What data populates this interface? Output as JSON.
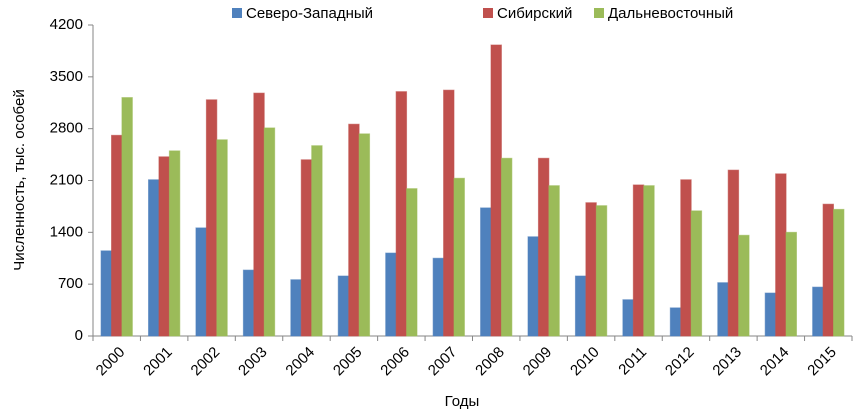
{
  "chart_data": {
    "type": "bar",
    "categories": [
      "2000",
      "2001",
      "2002",
      "2003",
      "2004",
      "2005",
      "2006",
      "2007",
      "2008",
      "2009",
      "2010",
      "2011",
      "2012",
      "2013",
      "2014",
      "2015"
    ],
    "series": [
      {
        "name": "Северо-Западный",
        "color": "#4f81bd",
        "values": [
          1150,
          2110,
          1460,
          890,
          760,
          810,
          1120,
          1050,
          1730,
          1340,
          810,
          490,
          380,
          720,
          580,
          660
        ]
      },
      {
        "name": "Сибирский",
        "color": "#c0504d",
        "values": [
          2710,
          2420,
          3190,
          3280,
          2380,
          2860,
          3300,
          3320,
          3930,
          2400,
          1800,
          2040,
          2110,
          2240,
          2190,
          1780
        ]
      },
      {
        "name": "Дальневосточный",
        "color": "#9bbb59",
        "values": [
          3220,
          2500,
          2650,
          2810,
          2570,
          2730,
          1990,
          2130,
          2400,
          2030,
          1760,
          2030,
          1690,
          1360,
          1400,
          1710
        ]
      }
    ],
    "xlabel": "Годы",
    "ylabel": "Численность, тыс. особей",
    "ylim": [
      0,
      4200
    ],
    "yticks": [
      0,
      700,
      1400,
      2100,
      2800,
      3500,
      4200
    ],
    "legend": "top"
  }
}
